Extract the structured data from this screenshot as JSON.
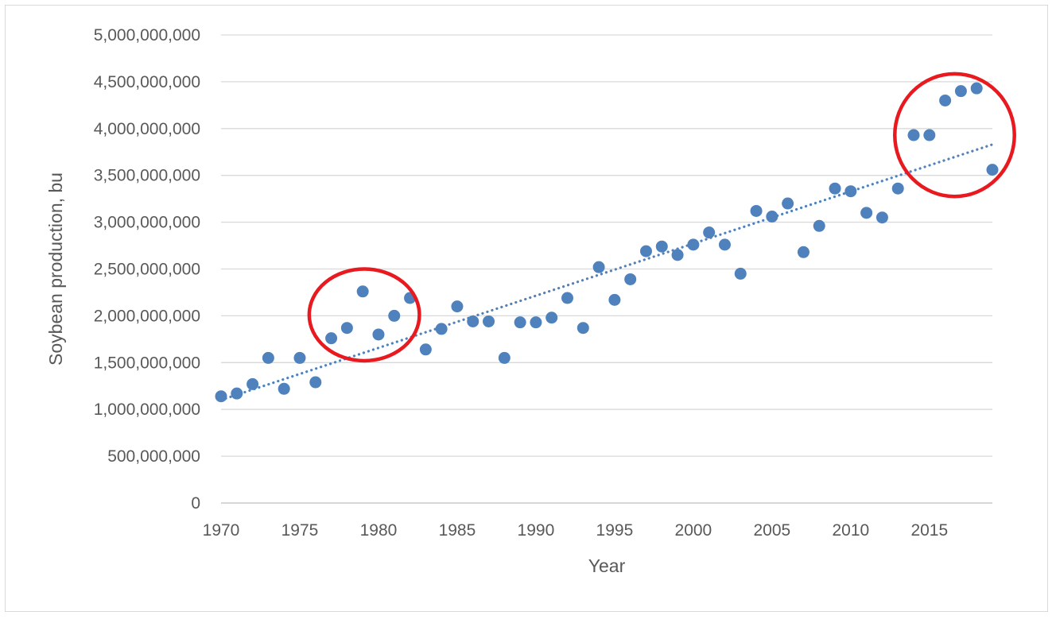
{
  "chart_data": {
    "type": "scatter",
    "title": "",
    "xlabel": "Year",
    "ylabel": "Soybean production, bu",
    "xlim": [
      1970,
      2019
    ],
    "ylim": [
      0,
      5000000000
    ],
    "x_ticks": [
      "1970",
      "1975",
      "1980",
      "1985",
      "1990",
      "1995",
      "2000",
      "2005",
      "2010",
      "2015"
    ],
    "y_ticks": [
      "0",
      "500,000,000",
      "1,000,000,000",
      "1,500,000,000",
      "2,000,000,000",
      "2,500,000,000",
      "3,000,000,000",
      "3,500,000,000",
      "4,000,000,000",
      "4,500,000,000",
      "5,000,000,000"
    ],
    "grid": "horizontal",
    "legend": "none",
    "marker_color": "#4f81bd",
    "trendline": {
      "type": "linear",
      "style": "dotted",
      "color": "#4f81bd",
      "start": [
        1970,
        1100000000
      ],
      "end": [
        2019,
        3830000000
      ]
    },
    "annotations": [
      {
        "type": "circle",
        "color": "#e8191f",
        "center": [
          1979.1,
          2010000000
        ],
        "radius_years": 3.5,
        "radius_value": 490000000
      },
      {
        "type": "circle",
        "color": "#e8191f",
        "center": [
          2016.6,
          3930000000
        ],
        "radius_years": 3.8,
        "radius_value": 655000000
      }
    ],
    "x": [
      1970,
      1971,
      1972,
      1973,
      1974,
      1975,
      1976,
      1977,
      1978,
      1979,
      1980,
      1981,
      1982,
      1983,
      1984,
      1985,
      1986,
      1987,
      1988,
      1989,
      1990,
      1991,
      1992,
      1993,
      1994,
      1995,
      1996,
      1997,
      1998,
      1999,
      2000,
      2001,
      2002,
      2003,
      2004,
      2005,
      2006,
      2007,
      2008,
      2009,
      2010,
      2011,
      2012,
      2013,
      2014,
      2015,
      2016,
      2017,
      2018,
      2019
    ],
    "values": [
      1140000000,
      1170000000,
      1270000000,
      1550000000,
      1220000000,
      1550000000,
      1290000000,
      1760000000,
      1870000000,
      2260000000,
      1800000000,
      2000000000,
      2190000000,
      1640000000,
      1860000000,
      2100000000,
      1940000000,
      1940000000,
      1550000000,
      1930000000,
      1930000000,
      1980000000,
      2190000000,
      1870000000,
      2520000000,
      2170000000,
      2390000000,
      2690000000,
      2740000000,
      2650000000,
      2760000000,
      2890000000,
      2760000000,
      2450000000,
      3120000000,
      3060000000,
      3200000000,
      2680000000,
      2960000000,
      3360000000,
      3330000000,
      3100000000,
      3050000000,
      3360000000,
      3930000000,
      3930000000,
      4300000000,
      4400000000,
      4430000000,
      3560000000
    ]
  }
}
